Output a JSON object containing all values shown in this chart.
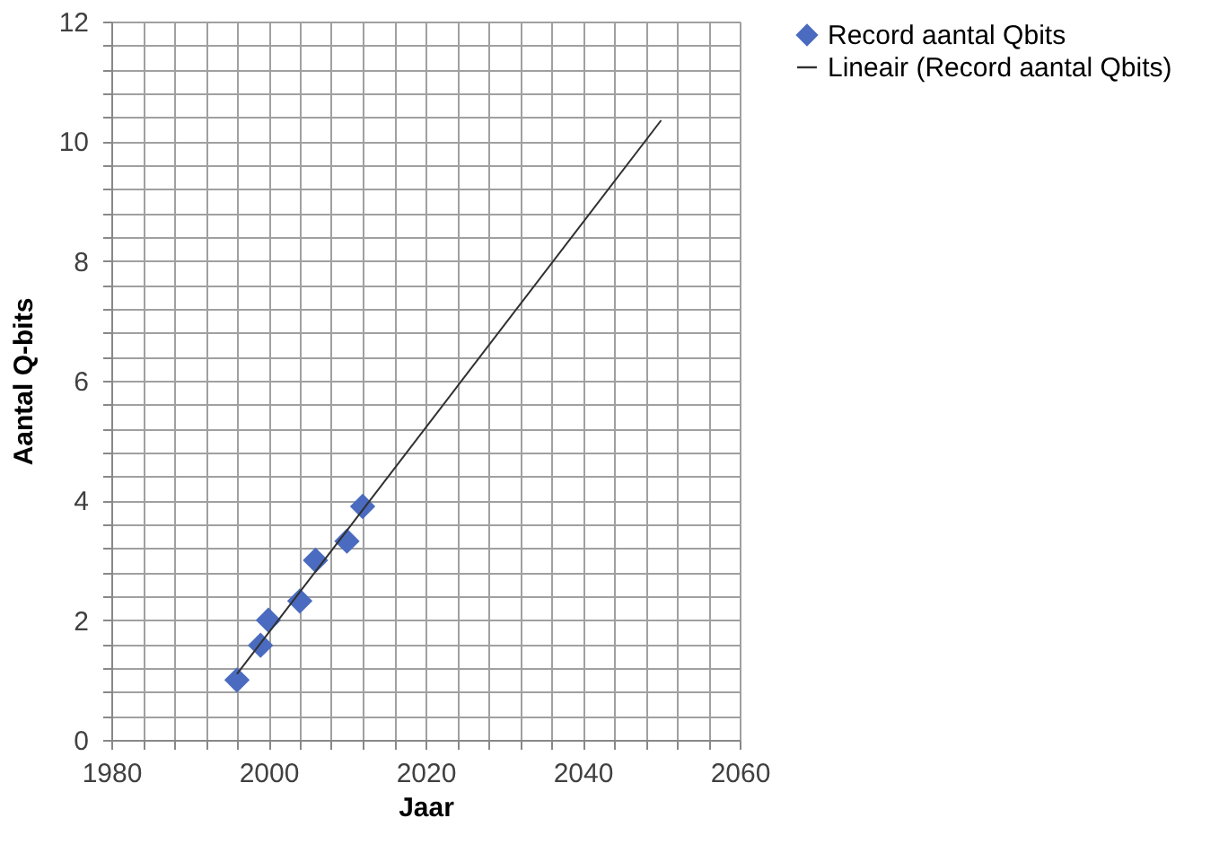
{
  "chart_data": {
    "type": "scatter",
    "xlabel": "Jaar",
    "ylabel": "Aantal Q-bits",
    "series": [
      {
        "name": "Record aantal Qbits",
        "type": "scatter",
        "marker": "diamond",
        "color": "#4a6bbf",
        "x": [
          1996,
          1999,
          2000,
          2004,
          2006,
          2010,
          2012
        ],
        "values": [
          1.0,
          1.58,
          2.0,
          2.32,
          3.0,
          3.32,
          3.9
        ]
      },
      {
        "name": "Lineair (Record aantal Qbits)",
        "type": "line",
        "marker": "none",
        "line_style": "solid",
        "color": "#303030",
        "x": [
          1996,
          2050
        ],
        "values": [
          1.1,
          10.35
        ]
      }
    ],
    "xlim": [
      1980,
      2060
    ],
    "xticks": [
      1980,
      {
        "value": 1984,
        "label": null
      },
      {
        "value": 1988,
        "label": null
      },
      {
        "value": 1992,
        "label": null
      },
      {
        "value": 1996,
        "label": null
      },
      2000,
      {
        "value": 2004,
        "label": null
      },
      {
        "value": 2008,
        "label": null
      },
      {
        "value": 2012,
        "label": null
      },
      {
        "value": 2016,
        "label": null
      },
      2020,
      {
        "value": 2024,
        "label": null
      },
      {
        "value": 2028,
        "label": null
      },
      {
        "value": 2032,
        "label": null
      },
      {
        "value": 2036,
        "label": null
      },
      2040,
      {
        "value": 2044,
        "label": null
      },
      {
        "value": 2048,
        "label": null
      },
      {
        "value": 2052,
        "label": null
      },
      {
        "value": 2056,
        "label": null
      },
      2060
    ],
    "ylim": [
      0,
      12
    ],
    "yticks": [
      0,
      {
        "value": 0.4,
        "label": null
      },
      {
        "value": 0.8,
        "label": null
      },
      {
        "value": 1.2,
        "label": null
      },
      {
        "value": 1.6,
        "label": null
      },
      2,
      {
        "value": 2.4,
        "label": null
      },
      {
        "value": 2.8,
        "label": null
      },
      {
        "value": 3.2,
        "label": null
      },
      {
        "value": 3.6,
        "label": null
      },
      4,
      {
        "value": 4.4,
        "label": null
      },
      {
        "value": 4.8,
        "label": null
      },
      {
        "value": 5.2,
        "label": null
      },
      {
        "value": 5.6,
        "label": null
      },
      6,
      {
        "value": 6.4,
        "label": null
      },
      {
        "value": 6.8,
        "label": null
      },
      {
        "value": 7.2,
        "label": null
      },
      {
        "value": 7.6,
        "label": null
      },
      8,
      {
        "value": 8.4,
        "label": null
      },
      {
        "value": 8.8,
        "label": null
      },
      {
        "value": 9.2,
        "label": null
      },
      {
        "value": 9.6,
        "label": null
      },
      10,
      {
        "value": 10.4,
        "label": null
      },
      {
        "value": 10.8,
        "label": null
      },
      {
        "value": 11.2,
        "label": null
      },
      {
        "value": 11.6,
        "label": null
      },
      12
    ],
    "grid": true,
    "legend": "right"
  }
}
